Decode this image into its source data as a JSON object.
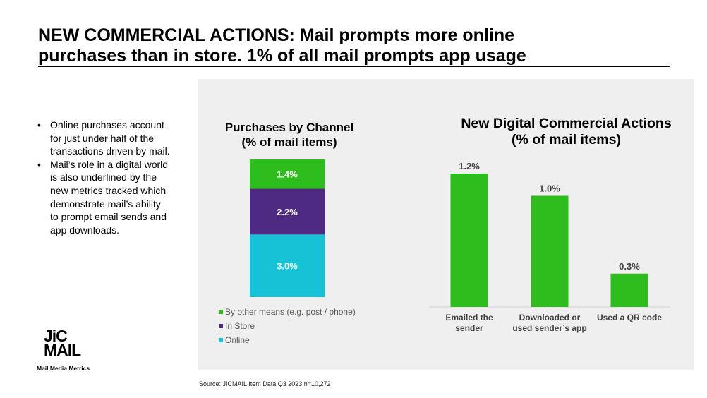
{
  "slide": {
    "title_line1": "NEW COMMERCIAL ACTIONS: Mail prompts more online",
    "title_line2": "purchases than in store. 1% of all mail prompts app usage",
    "bullets": [
      "Online purchases account for just under half of the transactions driven by mail.",
      "Mail’s role in a digital world is also underlined by the new metrics tracked which demonstrate mail’s ability to prompt email sends and app downloads."
    ],
    "logo_text_line1": "JiC",
    "logo_text_line2": "MAIL",
    "logo_tagline": "Mail Media Metrics",
    "source": "Source: JICMAIL Item Data Q3 2023 n=10,272"
  },
  "chart_data": [
    {
      "type": "bar",
      "stacked": true,
      "title_line1": "Purchases by Channel",
      "title_line2": "(% of mail items)",
      "categories": [
        ""
      ],
      "series": [
        {
          "name": "Online",
          "values": [
            3.0
          ],
          "color": "#17c1d6",
          "label": "3.0%"
        },
        {
          "name": "In Store",
          "values": [
            2.2
          ],
          "color": "#4f2a82",
          "label": "2.2%"
        },
        {
          "name": "By other means (e.g. post / phone)",
          "values": [
            1.4
          ],
          "color": "#2dbd1c",
          "label": "1.4%"
        }
      ],
      "legend_order": [
        "By other means (e.g. post / phone)",
        "In Store",
        "Online"
      ],
      "legend_position": "bottom",
      "grid": false
    },
    {
      "type": "bar",
      "title_line1": "New Digital Commercial Actions",
      "title_line2": "(% of mail items)",
      "categories": [
        "Emailed the sender",
        "Downloaded or used sender’s app",
        "Used a QR code"
      ],
      "category_lines": [
        [
          "Emailed the",
          "sender"
        ],
        [
          "Downloaded or",
          "used sender’s app"
        ],
        [
          "Used a QR code"
        ]
      ],
      "values": [
        1.2,
        1.0,
        0.3
      ],
      "labels": [
        "1.2%",
        "1.0%",
        "0.3%"
      ],
      "color": "#2dbd1c",
      "ylim": [
        0,
        1.2
      ],
      "grid": false
    }
  ]
}
